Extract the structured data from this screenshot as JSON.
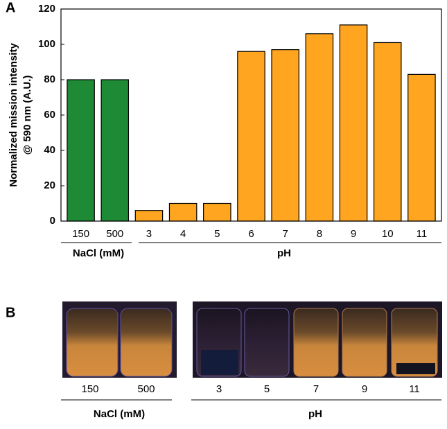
{
  "chart_data": {
    "type": "bar",
    "panel_label": "A",
    "ylabel": [
      "Normalized mission intensity",
      "@ 590 nm (A.U.)"
    ],
    "categories": [
      "150",
      "500",
      "3",
      "4",
      "5",
      "6",
      "7",
      "8",
      "9",
      "10",
      "11"
    ],
    "values": [
      80,
      80,
      6,
      10,
      10,
      96,
      97,
      106,
      111,
      101,
      83
    ],
    "colors": [
      "#1f8a36",
      "#1f8a36",
      "#ffa51f",
      "#ffa51f",
      "#ffa51f",
      "#ffa51f",
      "#ffa51f",
      "#ffa51f",
      "#ffa51f",
      "#ffa51f",
      "#ffa51f"
    ],
    "groups": [
      "NaCl (mM)",
      "pH"
    ],
    "ylim": [
      0,
      120
    ],
    "yticks": [
      0,
      20,
      40,
      60,
      80,
      100,
      120
    ],
    "grid": false
  },
  "photo": {
    "panel_label": "B",
    "labels": [
      "150",
      "500",
      "3",
      "5",
      "7",
      "9",
      "11"
    ],
    "groups": [
      "NaCl (mM)",
      "pH"
    ]
  }
}
